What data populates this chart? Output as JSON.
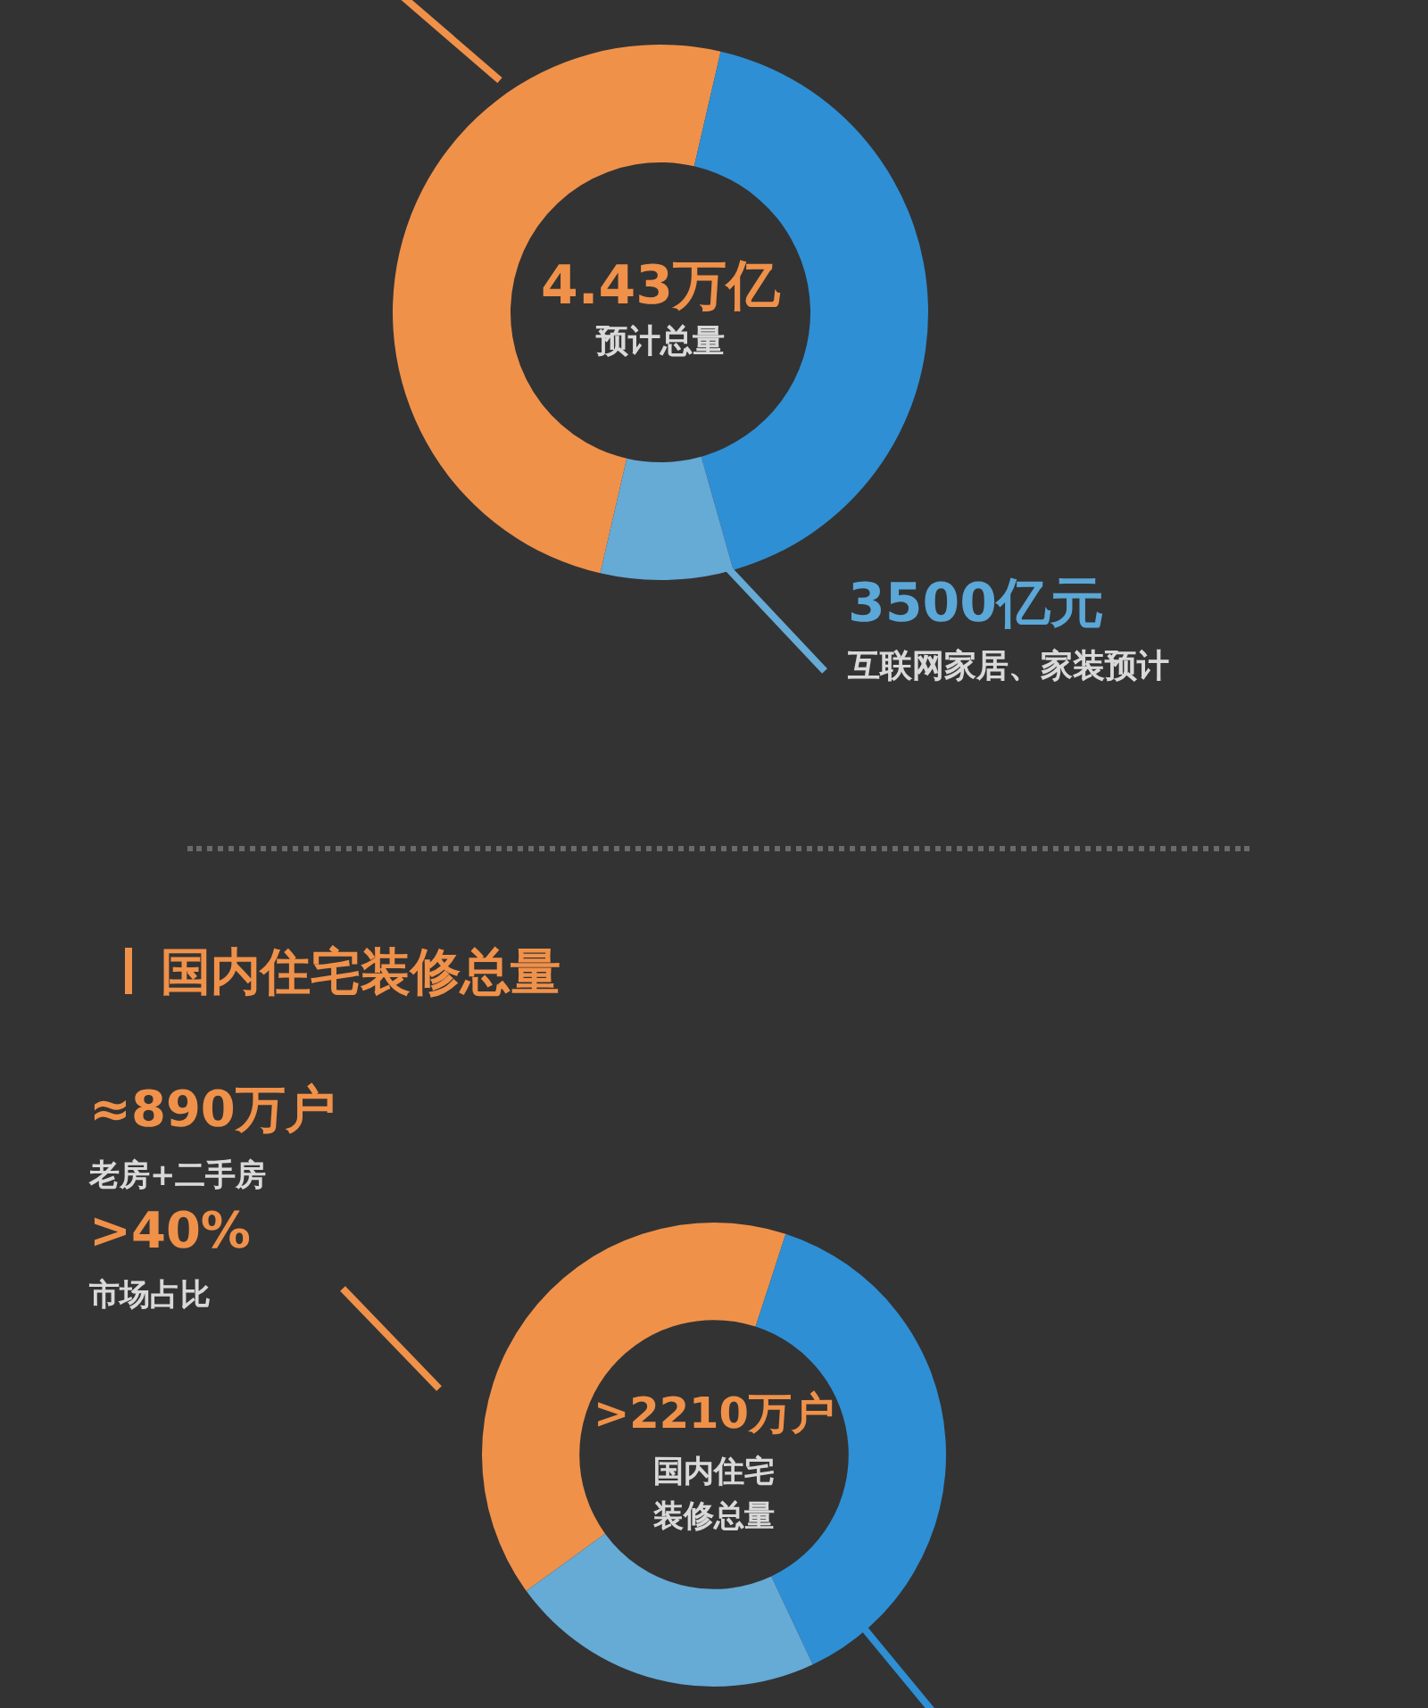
{
  "chart_data": [
    {
      "type": "donut",
      "categories": [
        null,
        null,
        null
      ],
      "values": [
        50,
        42,
        8
      ],
      "colors": [
        "#f0914a",
        "#2e8fd4",
        "#66aad6"
      ],
      "annotations": [
        "4.43万亿",
        "预计总量",
        "3500亿元",
        "互联网家居、家装预计"
      ],
      "legend": false
    },
    {
      "type": "donut",
      "title": "国内住宅装修总量",
      "categories": [
        null,
        null,
        null
      ],
      "values": [
        40,
        38,
        22
      ],
      "colors": [
        "#f0914a",
        "#2e8fd4",
        "#66aad6"
      ],
      "annotations": [
        "≈890万户",
        "老房+二手房",
        ">40%",
        "市场占比",
        ">2210万户",
        "国内住宅",
        "装修总量"
      ],
      "legend": false
    }
  ]
}
